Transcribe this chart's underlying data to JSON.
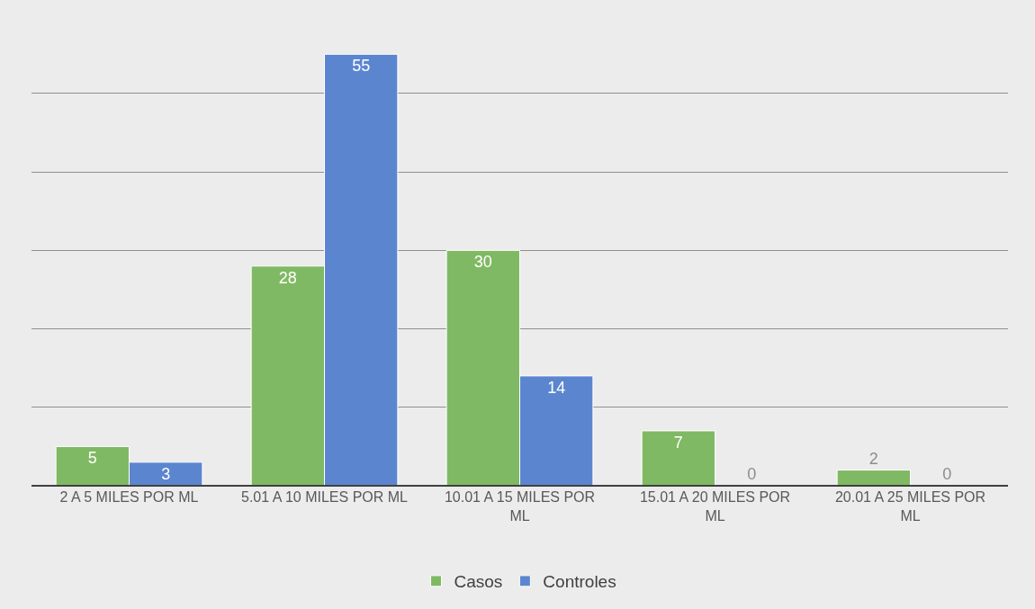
{
  "chart_data": {
    "type": "bar",
    "categories": [
      "2 A 5 MILES POR ML",
      "5.01 A 10 MILES POR ML",
      "10.01 A 15 MILES POR ML",
      "15.01 A 20 MILES POR ML",
      "20.01 A 25 MILES POR ML"
    ],
    "series": [
      {
        "name": "Casos",
        "color": "#80b963",
        "values": [
          5,
          28,
          30,
          7,
          2
        ]
      },
      {
        "name": "Controles",
        "color": "#5b86cf",
        "values": [
          3,
          55,
          14,
          0,
          0
        ]
      }
    ],
    "grid": "y",
    "legend": "bottom",
    "data_labels": true,
    "tick_labels": "x"
  }
}
